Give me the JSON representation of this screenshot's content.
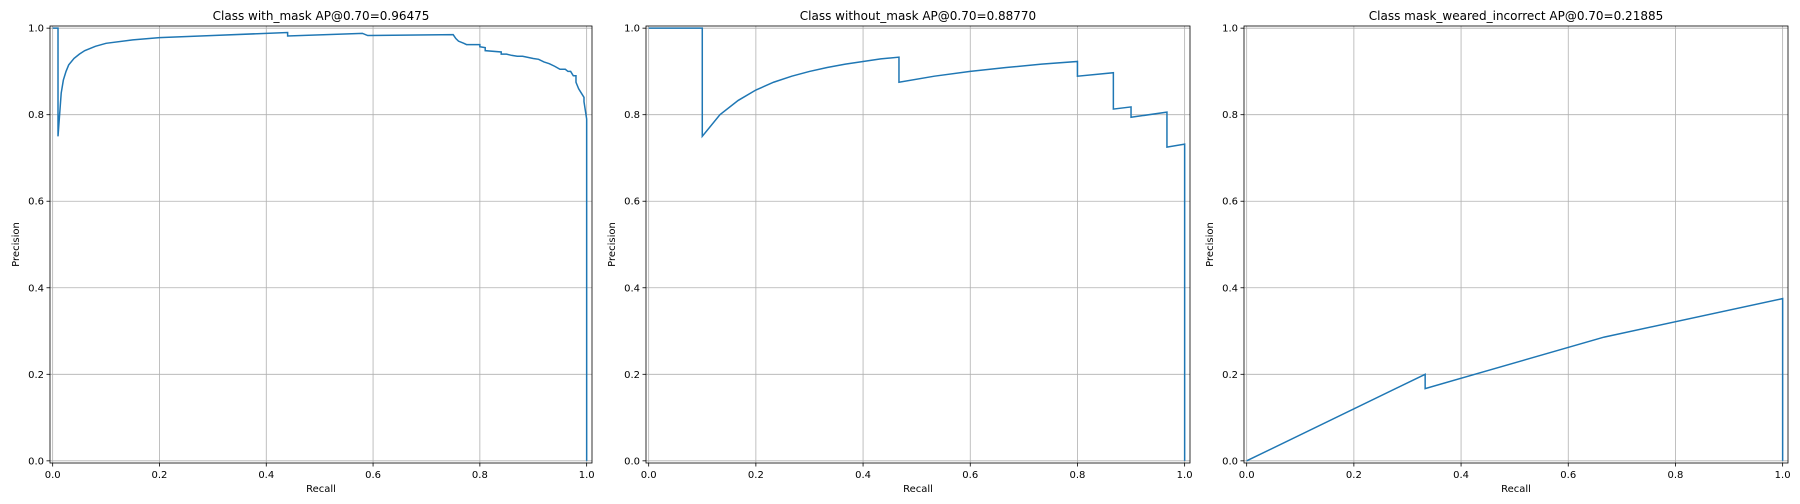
{
  "chart_data": [
    {
      "type": "line",
      "title": "Class with_mask AP@0.70=0.96475",
      "xlabel": "Recall",
      "ylabel": "Precision",
      "xlim": [
        -0.005,
        1.01
      ],
      "ylim": [
        -0.005,
        1.005
      ],
      "xticks": [
        "0.0",
        "0.2",
        "0.4",
        "0.6",
        "0.8",
        "1.0"
      ],
      "yticks": [
        "0.0",
        "0.2",
        "0.4",
        "0.6",
        "0.8",
        "1.0"
      ],
      "grid": true,
      "color": "#1f77b4",
      "series": [
        {
          "x": [
            0.0,
            0.01,
            0.01,
            0.013,
            0.016,
            0.02,
            0.025,
            0.03,
            0.04,
            0.05,
            0.06,
            0.08,
            0.1,
            0.15,
            0.2,
            0.3,
            0.44,
            0.44,
            0.58,
            0.59,
            0.75,
            0.755,
            0.76,
            0.77,
            0.775,
            0.8,
            0.8,
            0.81,
            0.81,
            0.84,
            0.84,
            0.85,
            0.86,
            0.87,
            0.88,
            0.9,
            0.91,
            0.92,
            0.925,
            0.93,
            0.94,
            0.95,
            0.96,
            0.965,
            0.97,
            0.975,
            0.98,
            0.98,
            0.985,
            0.99,
            0.995,
            0.995,
            1.0,
            1.0
          ],
          "y": [
            1.0,
            1.0,
            0.75,
            0.8,
            0.85,
            0.88,
            0.9,
            0.915,
            0.93,
            0.94,
            0.948,
            0.958,
            0.965,
            0.973,
            0.978,
            0.983,
            0.99,
            0.982,
            0.988,
            0.983,
            0.985,
            0.976,
            0.97,
            0.965,
            0.962,
            0.962,
            0.957,
            0.955,
            0.948,
            0.945,
            0.94,
            0.94,
            0.937,
            0.935,
            0.935,
            0.93,
            0.928,
            0.922,
            0.92,
            0.918,
            0.912,
            0.905,
            0.905,
            0.9,
            0.9,
            0.89,
            0.89,
            0.875,
            0.86,
            0.85,
            0.84,
            0.83,
            0.79,
            0.0
          ]
        }
      ]
    },
    {
      "type": "line",
      "title": "Class without_mask AP@0.70=0.88770",
      "xlabel": "Recall",
      "ylabel": "Precision",
      "xlim": [
        -0.005,
        1.01
      ],
      "ylim": [
        -0.005,
        1.005
      ],
      "xticks": [
        "0.0",
        "0.2",
        "0.4",
        "0.6",
        "0.8",
        "1.0"
      ],
      "yticks": [
        "0.0",
        "0.2",
        "0.4",
        "0.6",
        "0.8",
        "1.0"
      ],
      "grid": true,
      "color": "#1f77b4",
      "series": [
        {
          "x": [
            0.0,
            0.1,
            0.1,
            0.133,
            0.167,
            0.2,
            0.233,
            0.267,
            0.3,
            0.333,
            0.367,
            0.4,
            0.433,
            0.467,
            0.467,
            0.533,
            0.6,
            0.667,
            0.733,
            0.8,
            0.8,
            0.867,
            0.867,
            0.9,
            0.9,
            0.967,
            0.967,
            1.0,
            1.0
          ],
          "y": [
            1.0,
            1.0,
            0.75,
            0.8,
            0.833,
            0.857,
            0.875,
            0.889,
            0.9,
            0.909,
            0.917,
            0.923,
            0.929,
            0.933,
            0.875,
            0.889,
            0.9,
            0.909,
            0.917,
            0.923,
            0.889,
            0.897,
            0.813,
            0.818,
            0.794,
            0.806,
            0.725,
            0.732,
            0.0
          ]
        }
      ]
    },
    {
      "type": "line",
      "title": "Class mask_weared_incorrect AP@0.70=0.21885",
      "xlabel": "Recall",
      "ylabel": "Precision",
      "xlim": [
        -0.005,
        1.01
      ],
      "ylim": [
        -0.005,
        1.005
      ],
      "xticks": [
        "0.0",
        "0.2",
        "0.4",
        "0.6",
        "0.8",
        "1.0"
      ],
      "yticks": [
        "0.0",
        "0.2",
        "0.4",
        "0.6",
        "0.8",
        "1.0"
      ],
      "grid": true,
      "color": "#1f77b4",
      "series": [
        {
          "x": [
            0.0,
            0.333,
            0.333,
            0.667,
            1.0,
            1.0
          ],
          "y": [
            0.0,
            0.2,
            0.167,
            0.286,
            0.375,
            0.0
          ]
        }
      ]
    }
  ]
}
